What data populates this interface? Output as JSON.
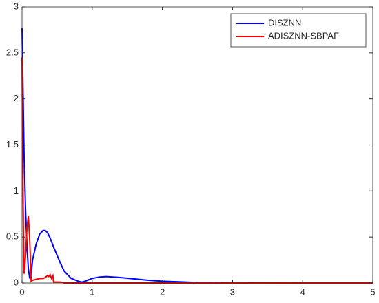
{
  "chart_data": {
    "type": "line",
    "x": [
      0,
      0.01,
      0.02,
      0.03,
      0.05,
      0.07,
      0.09,
      0.11,
      0.13,
      0.15,
      0.2,
      0.25,
      0.3,
      0.33,
      0.36,
      0.38,
      0.4,
      0.42,
      0.44,
      0.45,
      0.5,
      0.55,
      0.6,
      0.7,
      0.8,
      0.85,
      0.9,
      1.0,
      1.1,
      1.2,
      1.4,
      1.6,
      1.8,
      2.0,
      2.5,
      3,
      4,
      5
    ],
    "series": [
      {
        "name": "DISZNN",
        "color": "#0000ff",
        "values": [
          2.77,
          2.3,
          1.8,
          1.35,
          0.8,
          0.4,
          0.15,
          0.05,
          0.1,
          0.25,
          0.42,
          0.53,
          0.57,
          0.57,
          0.55,
          0.52,
          0.49,
          0.45,
          0.41,
          0.39,
          0.3,
          0.21,
          0.13,
          0.05,
          0.02,
          0.01,
          0.02,
          0.05,
          0.065,
          0.07,
          0.06,
          0.045,
          0.03,
          0.02,
          0.005,
          0.002,
          0,
          0
        ]
      },
      {
        "name": "ADISZNN-SBPAF",
        "color": "#ff0000",
        "values": [
          2.45,
          1.4,
          0.5,
          0.1,
          0.3,
          0.6,
          0.73,
          0.45,
          0.02,
          0.03,
          0.04,
          0.05,
          0.05,
          0.06,
          0.08,
          0.07,
          0.09,
          0.05,
          0.08,
          0.01,
          0.01,
          0.01,
          0,
          0,
          0,
          0,
          0,
          0,
          0,
          0,
          0,
          0,
          0,
          0,
          0,
          0,
          0,
          0
        ]
      }
    ],
    "xlim": [
      0,
      5
    ],
    "xticks": [
      0,
      1,
      2,
      3,
      4,
      5
    ],
    "ylim": [
      0,
      3
    ],
    "yticks": [
      0,
      0.5,
      1,
      1.5,
      2,
      2.5,
      3
    ],
    "legend": "northeast"
  }
}
